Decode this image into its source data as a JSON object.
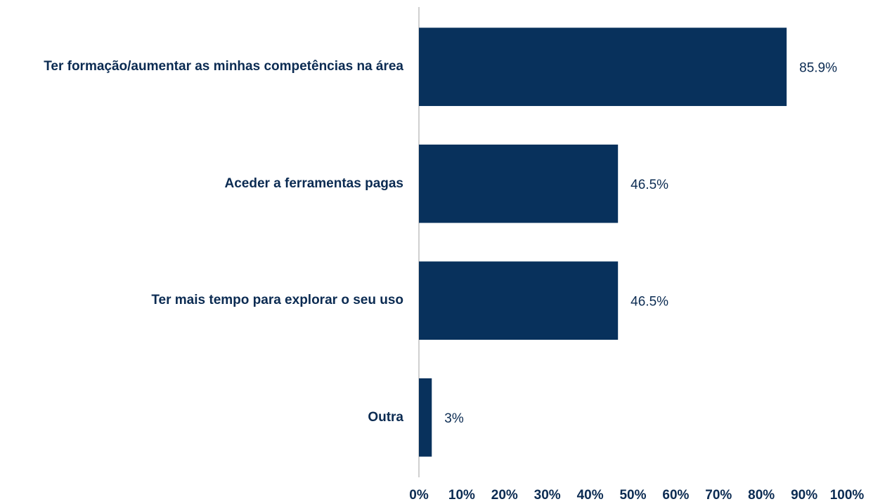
{
  "chart_data": {
    "type": "barh",
    "categories": [
      "Ter formação/aumentar as minhas competências na área",
      "Aceder a ferramentas pagas",
      "Ter mais tempo para explorar o seu uso",
      "Outra"
    ],
    "values": [
      85.9,
      46.5,
      46.5,
      3
    ],
    "value_labels": [
      "85.9%",
      "46.5%",
      "46.5%",
      "3%"
    ],
    "color": "#08315c",
    "xlim": [
      0,
      100
    ],
    "xticks": [
      {
        "value": 0,
        "label": "0%"
      },
      {
        "value": 10,
        "label": "10%"
      },
      {
        "value": 20,
        "label": "20%"
      },
      {
        "value": 30,
        "label": "30%"
      },
      {
        "value": 40,
        "label": "40%"
      },
      {
        "value": 50,
        "label": "50%"
      },
      {
        "value": 60,
        "label": "60%"
      },
      {
        "value": 70,
        "label": "70%"
      },
      {
        "value": 80,
        "label": "80%"
      },
      {
        "value": 90,
        "label": "90%"
      },
      {
        "value": 100,
        "label": "100%"
      }
    ],
    "grid": false
  }
}
